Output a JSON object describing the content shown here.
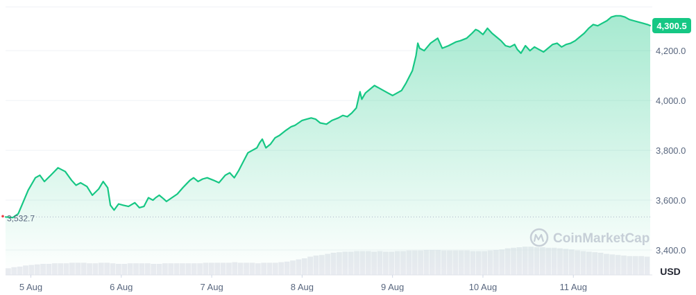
{
  "chart_data": {
    "type": "area",
    "currency_label": "USD",
    "watermark": "CoinMarketCap",
    "start_label": "3,532.7",
    "start_value": 3532.7,
    "current_value": 4300.5,
    "current_label": "4,300.5",
    "ylim": [
      3300,
      4370
    ],
    "yticks": [
      {
        "value": 3400,
        "label": "3,400.0"
      },
      {
        "value": 3600,
        "label": "3,600.0"
      },
      {
        "value": 3800,
        "label": "3,800.0"
      },
      {
        "value": 4000,
        "label": "4,000.0"
      },
      {
        "value": 4200,
        "label": "4,200.0"
      }
    ],
    "xlim": [
      4.72,
      11.85
    ],
    "xticks": [
      {
        "value": 5,
        "label": "5 Aug"
      },
      {
        "value": 6,
        "label": "6 Aug"
      },
      {
        "value": 7,
        "label": "7 Aug"
      },
      {
        "value": 8,
        "label": "8 Aug"
      },
      {
        "value": 9,
        "label": "9 Aug"
      },
      {
        "value": 10,
        "label": "10 Aug"
      },
      {
        "value": 11,
        "label": "11 Aug"
      }
    ],
    "series": [
      {
        "x": [
          4.72,
          4.8,
          4.86,
          4.9,
          4.97,
          5.05,
          5.1,
          5.15,
          5.22,
          5.3,
          5.38,
          5.45,
          5.5,
          5.55,
          5.62,
          5.68,
          5.75,
          5.8,
          5.85,
          5.88,
          5.92,
          5.97,
          6.02,
          6.08,
          6.15,
          6.2,
          6.25,
          6.3,
          6.35,
          6.38,
          6.42,
          6.47,
          6.5,
          6.56,
          6.62,
          6.68,
          6.72,
          6.76,
          6.8,
          6.85,
          6.9,
          6.95,
          7.02,
          7.08,
          7.15,
          7.2,
          7.25,
          7.3,
          7.35,
          7.4,
          7.45,
          7.5,
          7.53,
          7.56,
          7.6,
          7.65,
          7.7,
          7.75,
          7.82,
          7.88,
          7.92,
          7.96,
          8.0,
          8.05,
          8.1,
          8.15,
          8.2,
          8.27,
          8.33,
          8.4,
          8.45,
          8.5,
          8.55,
          8.6,
          8.64,
          8.66,
          8.7,
          8.75,
          8.8,
          8.85,
          8.9,
          8.95,
          9.0,
          9.05,
          9.1,
          9.15,
          9.22,
          9.26,
          9.28,
          9.3,
          9.35,
          9.42,
          9.5,
          9.55,
          9.62,
          9.7,
          9.75,
          9.82,
          9.88,
          9.92,
          9.95,
          10.0,
          10.05,
          10.1,
          10.15,
          10.2,
          10.25,
          10.3,
          10.35,
          10.38,
          10.42,
          10.47,
          10.52,
          10.57,
          10.62,
          10.67,
          10.72,
          10.77,
          10.82,
          10.87,
          10.92,
          10.97,
          11.02,
          11.07,
          11.12,
          11.17,
          11.22,
          11.27,
          11.32,
          11.37,
          11.42,
          11.47,
          11.52,
          11.57,
          11.62,
          11.67,
          11.72,
          11.77,
          11.82,
          11.85
        ],
        "y": [
          3532.7,
          3530,
          3545,
          3580,
          3640,
          3690,
          3700,
          3675,
          3700,
          3730,
          3715,
          3680,
          3660,
          3670,
          3655,
          3620,
          3645,
          3675,
          3650,
          3580,
          3560,
          3585,
          3580,
          3575,
          3590,
          3570,
          3575,
          3610,
          3600,
          3610,
          3620,
          3605,
          3595,
          3610,
          3625,
          3650,
          3665,
          3680,
          3690,
          3675,
          3685,
          3690,
          3680,
          3670,
          3700,
          3710,
          3690,
          3720,
          3755,
          3790,
          3800,
          3810,
          3830,
          3845,
          3810,
          3825,
          3850,
          3860,
          3880,
          3895,
          3900,
          3910,
          3920,
          3925,
          3930,
          3925,
          3910,
          3905,
          3920,
          3930,
          3940,
          3935,
          3950,
          3970,
          4035,
          4005,
          4030,
          4045,
          4060,
          4050,
          4040,
          4030,
          4020,
          4030,
          4040,
          4070,
          4120,
          4180,
          4230,
          4210,
          4200,
          4230,
          4250,
          4210,
          4220,
          4235,
          4240,
          4250,
          4270,
          4285,
          4280,
          4265,
          4290,
          4270,
          4255,
          4240,
          4220,
          4215,
          4225,
          4205,
          4190,
          4220,
          4200,
          4215,
          4205,
          4195,
          4210,
          4225,
          4230,
          4215,
          4225,
          4230,
          4240,
          4255,
          4270,
          4290,
          4305,
          4300,
          4310,
          4320,
          4335,
          4340,
          4340,
          4335,
          4325,
          4320,
          4315,
          4310,
          4305,
          4300.5
        ]
      }
    ],
    "volume": [
      12,
      14,
      15,
      17,
      18,
      19,
      20,
      20,
      21,
      21,
      21,
      22,
      22,
      22,
      21,
      21,
      22,
      22,
      21,
      20,
      20,
      21,
      21,
      21,
      21,
      20,
      20,
      21,
      21,
      21,
      21,
      21,
      21,
      21,
      22,
      22,
      22,
      22,
      22,
      23,
      22,
      22,
      22,
      21,
      22,
      22,
      22,
      23,
      24,
      26,
      28,
      30,
      33,
      35,
      36,
      38,
      40,
      41,
      42,
      42,
      43,
      43,
      43,
      42,
      43,
      42,
      42,
      43,
      43,
      44,
      44,
      44,
      45,
      45,
      45,
      44,
      44,
      44,
      44,
      44,
      43,
      43,
      43,
      44,
      45,
      46,
      48,
      49,
      50,
      51,
      51,
      50,
      50,
      49,
      49,
      48,
      47,
      46,
      44,
      43,
      42,
      41,
      40,
      38,
      37,
      36,
      35,
      34,
      34,
      34,
      33
    ],
    "colors": {
      "line": "#16c784",
      "badge": "#16c784",
      "start_dot": "#ea3943",
      "grid": "#eff2f5",
      "axis_text": "#58667e",
      "volume": "#dfe3ea",
      "watermark": "#b8c0cc"
    }
  }
}
